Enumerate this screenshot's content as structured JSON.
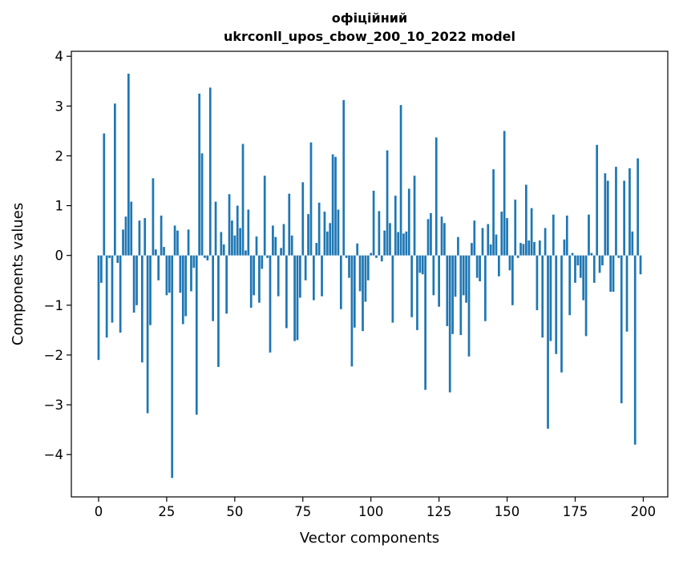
{
  "chart_data": {
    "type": "bar",
    "title_lines": [
      "офіційний",
      "ukrconll_upos_cbow_200_10_2022 model"
    ],
    "xlabel": "Vector components",
    "ylabel": "Components values",
    "xlim": [
      -10,
      209
    ],
    "ylim": [
      -4.85,
      4.1
    ],
    "xticks": [
      0,
      25,
      50,
      75,
      100,
      125,
      150,
      175,
      200
    ],
    "yticks": [
      -4,
      -3,
      -2,
      -1,
      0,
      1,
      2,
      3,
      4
    ],
    "bar_color": "#1f77b4",
    "grid": false,
    "values": [
      -2.1,
      -0.55,
      2.45,
      -1.65,
      -0.05,
      -1.35,
      3.05,
      -0.15,
      -1.55,
      0.52,
      0.78,
      3.65,
      1.08,
      -1.15,
      -1.0,
      0.7,
      -2.15,
      0.75,
      -3.17,
      -1.4,
      1.55,
      0.12,
      -0.5,
      0.8,
      0.17,
      -0.8,
      -0.75,
      -4.47,
      0.6,
      0.5,
      -0.75,
      -1.38,
      -1.22,
      0.52,
      -0.72,
      -0.25,
      -3.2,
      3.25,
      2.05,
      -0.05,
      -0.1,
      3.37,
      -1.32,
      1.08,
      -2.24,
      0.47,
      0.22,
      -1.17,
      1.23,
      0.7,
      0.4,
      1.0,
      0.55,
      2.24,
      0.1,
      0.92,
      -1.05,
      -0.8,
      0.38,
      -0.95,
      -0.27,
      1.6,
      -0.05,
      -1.95,
      0.6,
      0.37,
      -0.82,
      0.15,
      0.63,
      -1.46,
      1.24,
      0.4,
      -1.72,
      -1.7,
      -0.85,
      1.47,
      -0.5,
      0.83,
      2.27,
      -0.9,
      0.25,
      1.06,
      -0.82,
      0.88,
      0.48,
      0.65,
      2.03,
      1.98,
      0.92,
      -1.08,
      3.12,
      -0.05,
      -0.45,
      -2.23,
      -1.45,
      0.24,
      -0.72,
      -1.52,
      -0.93,
      -0.5,
      0.05,
      1.3,
      -0.05,
      0.89,
      -0.12,
      0.5,
      2.11,
      0.65,
      -1.35,
      1.2,
      0.47,
      3.02,
      0.44,
      0.48,
      1.34,
      -1.24,
      1.6,
      -1.5,
      -0.35,
      -0.38,
      -2.7,
      0.73,
      0.85,
      -0.8,
      2.37,
      -1.03,
      0.78,
      0.65,
      -1.42,
      -2.75,
      -1.58,
      -0.83,
      0.37,
      -1.6,
      -0.8,
      -0.95,
      -2.03,
      0.25,
      0.7,
      -0.45,
      -0.52,
      0.55,
      -1.32,
      0.63,
      0.22,
      1.73,
      0.42,
      -0.42,
      0.88,
      2.5,
      0.75,
      -0.3,
      -1.0,
      1.12,
      -0.05,
      0.25,
      0.23,
      1.42,
      0.3,
      0.95,
      0.27,
      -1.1,
      0.3,
      -1.65,
      0.55,
      -3.48,
      -1.72,
      0.82,
      -1.98,
      0.0,
      -2.35,
      0.32,
      0.8,
      -1.2,
      0.05,
      -0.55,
      -0.2,
      -0.45,
      -0.9,
      -1.62,
      0.82,
      0.05,
      -0.55,
      2.22,
      -0.35,
      -0.2,
      1.65,
      1.5,
      -0.73,
      -0.73,
      1.78,
      -0.05,
      -2.97,
      1.5,
      -1.53,
      1.75,
      0.48,
      -3.8,
      1.95,
      -0.38
    ]
  }
}
